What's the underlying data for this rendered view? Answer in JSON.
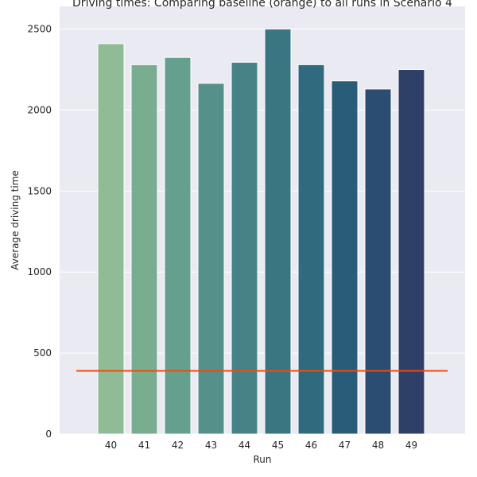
{
  "chart_data": {
    "type": "bar",
    "title": "Driving times: Comparing baseline (orange) to all runs in Scenario 4",
    "xlabel": "Run",
    "ylabel": "Average driving time",
    "categories": [
      "40",
      "41",
      "42",
      "43",
      "44",
      "45",
      "46",
      "47",
      "48",
      "49"
    ],
    "values": [
      2410,
      2280,
      2325,
      2165,
      2295,
      2500,
      2280,
      2180,
      2130,
      2250
    ],
    "baseline": 390,
    "ylim": [
      0,
      2640
    ],
    "yticks": [
      0,
      500,
      1000,
      1500,
      2000,
      2500
    ],
    "ytick_labels": [
      "0",
      "500",
      "1000",
      "1500",
      "2000",
      "2500"
    ],
    "grid": true,
    "legend": "none",
    "colors": {
      "background": "#eaeaf2",
      "grid": "#ffffff",
      "baseline": "#ff4500",
      "bars": [
        "#8fbc94",
        "#79ad8f",
        "#659f8d",
        "#55908a",
        "#468286",
        "#3a7682",
        "#2f6a7f",
        "#295c79",
        "#2a4d71",
        "#2e4068"
      ]
    }
  }
}
